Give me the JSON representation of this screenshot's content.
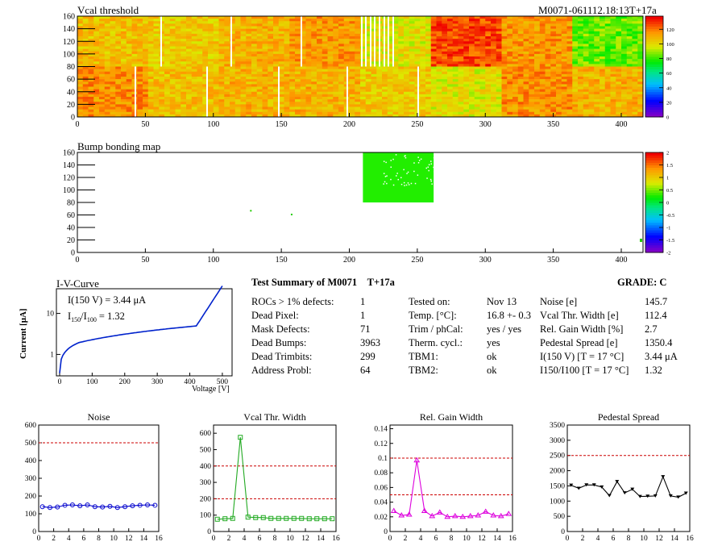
{
  "module_id": "M0071-061112.18:13T+17a",
  "vcal": {
    "title": "Vcal threshold",
    "x_ticks": [
      "0",
      "50",
      "100",
      "150",
      "200",
      "250",
      "300",
      "350",
      "400"
    ],
    "y_ticks": [
      "0",
      "20",
      "40",
      "60",
      "80",
      "100",
      "120",
      "140",
      "160"
    ],
    "colorbar_ticks": [
      "0",
      "20",
      "40",
      "60",
      "80",
      "100",
      "120"
    ]
  },
  "bump": {
    "title": "Bump bonding map",
    "x_ticks": [
      "0",
      "50",
      "100",
      "150",
      "200",
      "250",
      "300",
      "350",
      "400"
    ],
    "y_ticks": [
      "0",
      "20",
      "40",
      "60",
      "80",
      "100",
      "120",
      "140",
      "160"
    ],
    "colorbar_ticks": [
      "-2",
      "-1.5",
      "-1",
      "-0.5",
      "0",
      "0.5",
      "1",
      "1.5",
      "2"
    ]
  },
  "iv": {
    "title": "I-V-Curve",
    "annotation_1": "I(150 V) = 3.44 μA",
    "annotation_2_main": "I",
    "annotation_2_sub1": "150",
    "annotation_2_sep": "/I",
    "annotation_2_sub2": "100",
    "annotation_2_val": "=  1.32",
    "xlabel": "Voltage [V]",
    "ylabel": "Current [μA]",
    "x_ticks": [
      "0",
      "100",
      "200",
      "300",
      "400",
      "500"
    ],
    "y_ticks": [
      "1",
      "10"
    ]
  },
  "summary": {
    "title": "Test Summary of M0071",
    "tag": "T+17a",
    "grade_label": "GRADE:  C",
    "col1": [
      {
        "label": "ROCs > 1% defects:",
        "value": "1"
      },
      {
        "label": "Dead Pixel:",
        "value": "1"
      },
      {
        "label": "Mask Defects:",
        "value": "71"
      },
      {
        "label": "Dead Bumps:",
        "value": "3963"
      },
      {
        "label": "Dead Trimbits:",
        "value": "299"
      },
      {
        "label": "Address Probl:",
        "value": "64"
      }
    ],
    "col2": [
      {
        "label": "Tested on:",
        "value": "Nov 13"
      },
      {
        "label": "Temp. [°C]:",
        "value": "16.8 +- 0.3"
      },
      {
        "label": "Trim / phCal:",
        "value": "yes / yes"
      },
      {
        "label": "Therm. cycl.:",
        "value": "yes"
      },
      {
        "label": "TBM1:",
        "value": "ok"
      },
      {
        "label": "TBM2:",
        "value": "ok"
      }
    ],
    "col3": [
      {
        "label": "Noise [e]",
        "value": "145.7"
      },
      {
        "label": "Vcal Thr. Width [e]",
        "value": "112.4"
      },
      {
        "label": "Rel. Gain Width [%]",
        "value": "2.7"
      },
      {
        "label": "Pedestal Spread [e]",
        "value": "1350.4"
      },
      {
        "label": "I(150 V) [T = 17 °C]",
        "value": "3.44 μA"
      },
      {
        "label": "I150/I100  [T = 17 °C]",
        "value": "1.32"
      }
    ]
  },
  "colors": {
    "noise": "#0000cc",
    "vcal_width": "#22aa22",
    "gain": "#dd00dd",
    "pedestal": "#000000",
    "limit": "#cc0000"
  },
  "chart_data": [
    {
      "type": "line",
      "title": "Noise",
      "x": [
        0.5,
        1.5,
        2.5,
        3.5,
        4.5,
        5.5,
        6.5,
        7.5,
        8.5,
        9.5,
        10.5,
        11.5,
        12.5,
        13.5,
        14.5,
        15.5
      ],
      "values": [
        140,
        135,
        138,
        148,
        150,
        145,
        150,
        140,
        138,
        142,
        135,
        140,
        145,
        148,
        150,
        148
      ],
      "limit": 500,
      "xlim": [
        0,
        16
      ],
      "ylim": [
        0,
        600
      ],
      "x_ticks": [
        "0",
        "2",
        "4",
        "6",
        "8",
        "10",
        "12",
        "14",
        "16"
      ],
      "y_ticks": [
        "0",
        "100",
        "200",
        "300",
        "400",
        "500",
        "600"
      ]
    },
    {
      "type": "line",
      "title": "Vcal Thr. Width",
      "x": [
        0.5,
        1.5,
        2.5,
        3.5,
        4.5,
        5.5,
        6.5,
        7.5,
        8.5,
        9.5,
        10.5,
        11.5,
        12.5,
        13.5,
        14.5,
        15.5
      ],
      "values": [
        75,
        78,
        80,
        575,
        88,
        85,
        85,
        80,
        80,
        80,
        80,
        80,
        78,
        78,
        78,
        78
      ],
      "limits": [
        200,
        400
      ],
      "xlim": [
        0,
        16
      ],
      "ylim": [
        0,
        650
      ],
      "x_ticks": [
        "0",
        "2",
        "4",
        "6",
        "8",
        "10",
        "12",
        "14",
        "16"
      ],
      "y_ticks": [
        "0",
        "100",
        "200",
        "300",
        "400",
        "500",
        "600"
      ]
    },
    {
      "type": "line",
      "title": "Rel. Gain Width",
      "x": [
        0.5,
        1.5,
        2.5,
        3.5,
        4.5,
        5.5,
        6.5,
        7.5,
        8.5,
        9.5,
        10.5,
        11.5,
        12.5,
        13.5,
        14.5,
        15.5
      ],
      "values": [
        0.028,
        0.022,
        0.023,
        0.097,
        0.028,
        0.021,
        0.026,
        0.02,
        0.021,
        0.02,
        0.021,
        0.022,
        0.027,
        0.022,
        0.021,
        0.024
      ],
      "limits": [
        0.05,
        0.1
      ],
      "xlim": [
        0,
        16
      ],
      "ylim": [
        0,
        0.145
      ],
      "x_ticks": [
        "0",
        "2",
        "4",
        "6",
        "8",
        "10",
        "12",
        "14",
        "16"
      ],
      "y_ticks": [
        "0",
        "0.02",
        "0.04",
        "0.06",
        "0.08",
        "0.1",
        "0.12",
        "0.14"
      ]
    },
    {
      "type": "line",
      "title": "Pedestal Spread",
      "x": [
        0.5,
        1.5,
        2.5,
        3.5,
        4.5,
        5.5,
        6.5,
        7.5,
        8.5,
        9.5,
        10.5,
        11.5,
        12.5,
        13.5,
        14.5,
        15.5
      ],
      "values": [
        1520,
        1420,
        1530,
        1530,
        1460,
        1180,
        1640,
        1270,
        1390,
        1150,
        1160,
        1170,
        1800,
        1170,
        1130,
        1260
      ],
      "limit": 2500,
      "xlim": [
        0,
        16
      ],
      "ylim": [
        0,
        3500
      ],
      "x_ticks": [
        "0",
        "2",
        "4",
        "6",
        "8",
        "10",
        "12",
        "14",
        "16"
      ],
      "y_ticks": [
        "0",
        "500",
        "1000",
        "1500",
        "2000",
        "2500",
        "3000",
        "3500"
      ]
    }
  ]
}
